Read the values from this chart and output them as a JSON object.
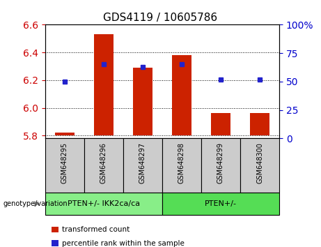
{
  "title": "GDS4119 / 10605786",
  "categories": [
    "GSM648295",
    "GSM648296",
    "GSM648297",
    "GSM648298",
    "GSM648299",
    "GSM648300"
  ],
  "bar_baseline": 5.8,
  "bar_values": [
    5.82,
    6.53,
    6.29,
    6.38,
    5.96,
    5.96
  ],
  "percentile_values": [
    50,
    65,
    63,
    65,
    52,
    52
  ],
  "ylim_left": [
    5.78,
    6.6
  ],
  "ylim_right": [
    0,
    100
  ],
  "yticks_left": [
    5.8,
    6.0,
    6.2,
    6.4,
    6.6
  ],
  "yticks_right": [
    0,
    25,
    50,
    75,
    100
  ],
  "bar_color": "#cc2200",
  "dot_color": "#2222cc",
  "label_bg_color": "#cccccc",
  "groups": [
    {
      "label": "PTEN+/- IKK2ca/ca",
      "indices": [
        0,
        1,
        2
      ],
      "color": "#88ee88"
    },
    {
      "label": "PTEN+/-",
      "indices": [
        3,
        4,
        5
      ],
      "color": "#55dd55"
    }
  ],
  "ylabel_left_color": "#cc0000",
  "ylabel_right_color": "#0000cc",
  "legend_items": [
    {
      "label": "transformed count",
      "color": "#cc2200"
    },
    {
      "label": "percentile rank within the sample",
      "color": "#2222cc"
    }
  ],
  "fig_width": 4.61,
  "fig_height": 3.54,
  "fig_dpi": 100
}
